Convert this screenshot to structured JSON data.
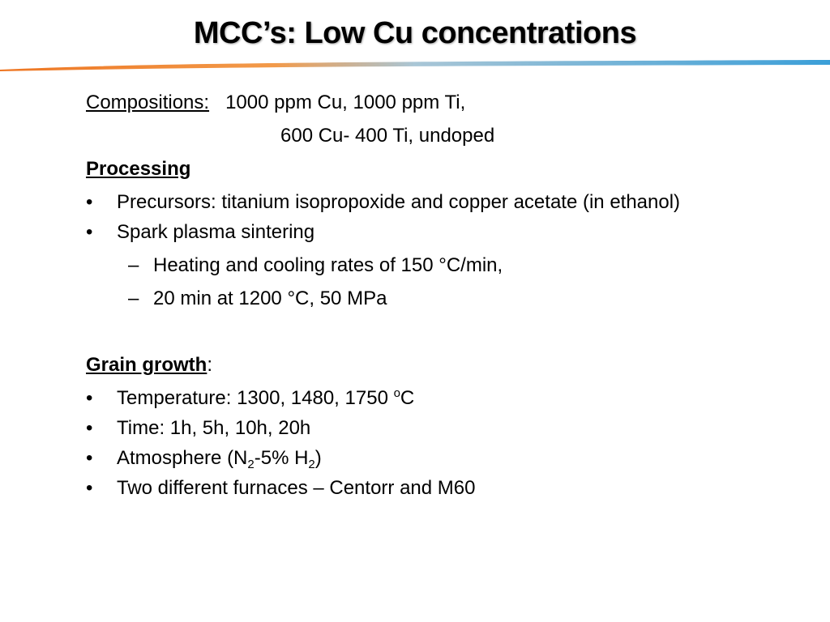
{
  "title": "MCC’s:  Low Cu concentrations",
  "colors": {
    "rule_orange": "#ee7623",
    "rule_blue": "#3b9fd8"
  },
  "compositions": {
    "label": "Compositions:",
    "line1": "1000 ppm Cu, 1000 ppm Ti,",
    "line2": "600 Cu- 400 Ti, undoped"
  },
  "processing": {
    "heading": "Processing",
    "bullet1": "Precursors: titanium isopropoxide and copper acetate (in ethanol)",
    "bullet2": "Spark plasma sintering",
    "sub1": "Heating and cooling rates of 150 °C/min,",
    "sub2": "20 min at 1200 °C, 50 MPa"
  },
  "grain_growth": {
    "heading": "Grain growth",
    "colon": ":",
    "temperature_text": "Temperature:  1300, 1480, 1750 ",
    "temperature_sup": "o",
    "temperature_unit": "C",
    "time": "Time:  1h, 5h, 10h, 20h",
    "atm_a": "Atmosphere (N",
    "atm_sub1": "2",
    "atm_b": "-5% H",
    "atm_sub2": "2",
    "atm_c": ")",
    "furnaces": "Two different furnaces – Centorr and M60"
  },
  "symbols": {
    "bullet": "•",
    "dash": "–"
  }
}
